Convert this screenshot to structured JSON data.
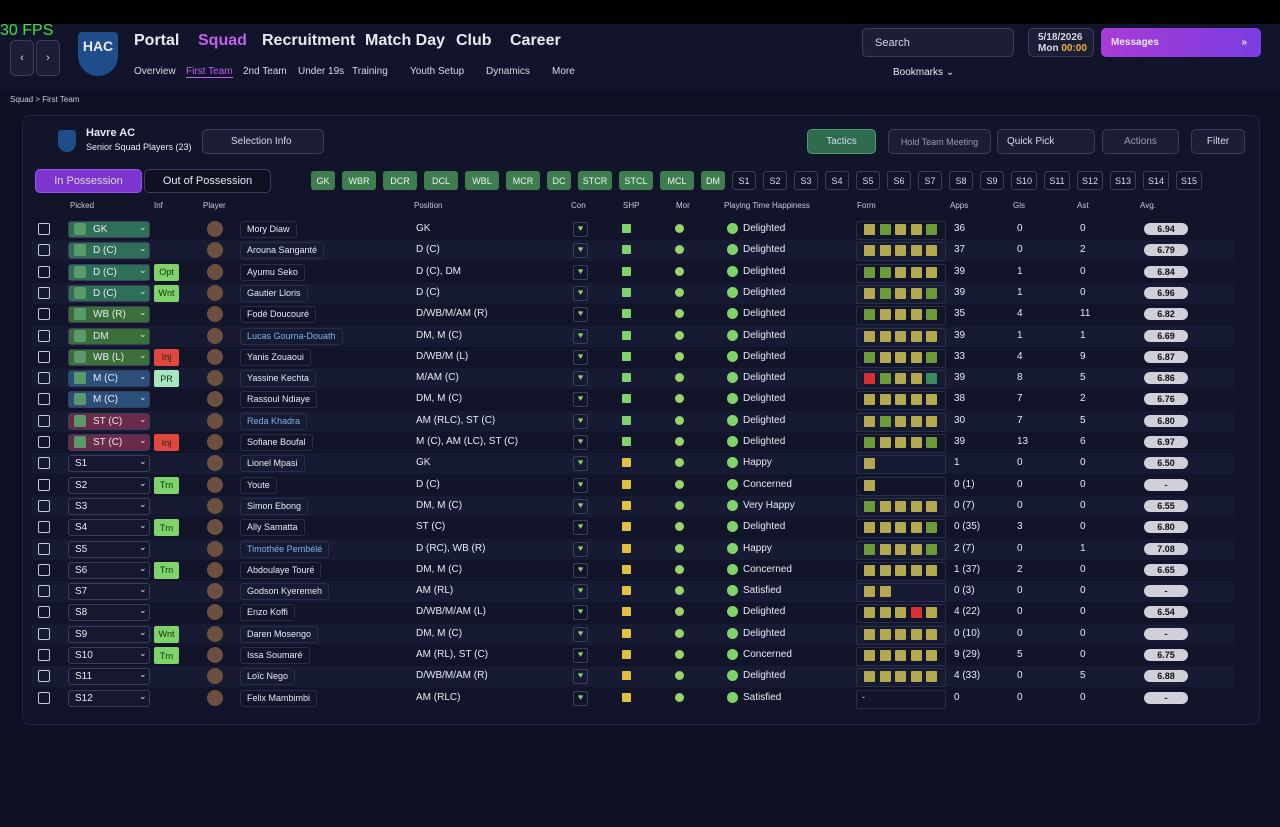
{
  "fps": "30 FPS",
  "nav": {
    "main": [
      "Portal",
      "Squad",
      "Recruitment",
      "Match Day",
      "Club",
      "Career"
    ],
    "sub": [
      "Overview",
      "First Team",
      "2nd Team",
      "Under 19s",
      "Training",
      "Youth Setup",
      "Dynamics",
      "More"
    ],
    "search": "Search",
    "date": "5/18/2026",
    "day": "Mon",
    "time": "00:00",
    "messages": "Messages",
    "bookmarks": "Bookmarks",
    "club_badge": "HAC"
  },
  "breadcrumb": [
    "Squad",
    "First Team"
  ],
  "team": {
    "name": "Havre AC",
    "subtitle": "Senior Squad Players (23)",
    "selection": "Selection Info"
  },
  "buttons": {
    "tactics": "Tactics",
    "meeting": "Hold Team Meeting",
    "quick_pick": "Quick Pick",
    "actions": "Actions",
    "filter": "Filter"
  },
  "tabs": [
    "In Possession",
    "Out of Possession"
  ],
  "starter_slots": [
    "GK",
    "WBR",
    "DCR",
    "DCL",
    "WBL",
    "MCR",
    "DC",
    "STCR",
    "STCL",
    "MCL",
    "DM"
  ],
  "sub_slots": [
    "S1",
    "S2",
    "S3",
    "S4",
    "S5",
    "S6",
    "S7",
    "S8",
    "S9",
    "S10",
    "S11",
    "S12",
    "S13",
    "S14",
    "S15"
  ],
  "table": {
    "headers": [
      "Picked",
      "Inf",
      "Player",
      "Position",
      "Con",
      "SHP",
      "Mor",
      "Playing Time Happiness",
      "Form",
      "Apps",
      "Gls",
      "Ast",
      "Avg."
    ],
    "rows": [
      {
        "picked": "GK",
        "pick_color": "#2f6f57",
        "name": "Mory Diaw",
        "position": "GK",
        "happiness": "Delighted",
        "apps": "36",
        "gls": 0,
        "ast": 0,
        "avg": "6.94",
        "form": [
          "#b5a94f",
          "#6f9a3a",
          "#b5a94f",
          "#b5a94f",
          "#6f9a3a"
        ]
      },
      {
        "picked": "D (C)",
        "pick_color": "#2f6f57",
        "name": "Arouna Sanganté",
        "position": "D (C)",
        "happiness": "Delighted",
        "apps": "37",
        "gls": 0,
        "ast": 2,
        "avg": "6.79",
        "form": [
          "#b5a94f",
          "#b5a94f",
          "#b5a94f",
          "#b5a94f",
          "#b5a94f"
        ]
      },
      {
        "picked": "D (C)",
        "pick_color": "#2f6f57",
        "inf": {
          "label": "Opt",
          "color": "#7fd36a"
        },
        "name": "Ayumu Seko",
        "position": "D (C), DM",
        "happiness": "Delighted",
        "apps": "39",
        "gls": 1,
        "ast": 0,
        "avg": "6.84",
        "form": [
          "#6f9a3a",
          "#6f9a3a",
          "#b5a94f",
          "#b5a94f",
          "#b5a94f"
        ]
      },
      {
        "picked": "D (C)",
        "pick_color": "#2f6f57",
        "inf": {
          "label": "Wnt",
          "color": "#7fd36a"
        },
        "name": "Gautier Lloris",
        "position": "D (C)",
        "happiness": "Delighted",
        "apps": "39",
        "gls": 1,
        "ast": 0,
        "avg": "6.96",
        "form": [
          "#b5a94f",
          "#6f9a3a",
          "#b5a94f",
          "#b5a94f",
          "#6f9a3a"
        ]
      },
      {
        "picked": "WB (R)",
        "pick_color": "#3a6f3a",
        "name": "Fodé Doucouré",
        "position": "D/WB/M/AM (R)",
        "happiness": "Delighted",
        "apps": "35",
        "gls": 4,
        "ast": 11,
        "avg": "6.82",
        "form": [
          "#6f9a3a",
          "#b5a94f",
          "#b5a94f",
          "#b5a94f",
          "#6f9a3a"
        ]
      },
      {
        "picked": "DM",
        "pick_color": "#3a6f3a",
        "name": "Lucas Gourna-Douath",
        "position": "DM, M (C)",
        "happiness": "Delighted",
        "apps": "39",
        "gls": 1,
        "ast": 1,
        "avg": "6.69",
        "form": [
          "#b5a94f",
          "#b5a94f",
          "#b5a94f",
          "#b5a94f",
          "#b5a94f"
        ]
      },
      {
        "picked": "WB (L)",
        "pick_color": "#3a6f3a",
        "inf": {
          "label": "Inj",
          "color": "#e0483f"
        },
        "name": "Yanis Zouaoui",
        "position": "D/WB/M (L)",
        "happiness": "Delighted",
        "apps": "33",
        "gls": 4,
        "ast": 9,
        "avg": "6.87",
        "form": [
          "#6f9a3a",
          "#b5a94f",
          "#b5a94f",
          "#b5a94f",
          "#6f9a3a"
        ]
      },
      {
        "picked": "M (C)",
        "pick_color": "#2a4f7a",
        "inf": {
          "label": "PR",
          "color": "#a8e6c0"
        },
        "name": "Yassine Kechta",
        "position": "M/AM (C)",
        "happiness": "Delighted",
        "apps": "39",
        "gls": 8,
        "ast": 5,
        "avg": "6.86",
        "form": [
          "#d83030",
          "#6f9a3a",
          "#b5a94f",
          "#b5a94f",
          "#3a8a5a"
        ]
      },
      {
        "picked": "M (C)",
        "pick_color": "#2a4f7a",
        "name": "Rassoul Ndiaye",
        "position": "DM, M (C)",
        "happiness": "Delighted",
        "apps": "38",
        "gls": 7,
        "ast": 2,
        "avg": "6.76",
        "form": [
          "#b5a94f",
          "#b5a94f",
          "#b5a94f",
          "#b5a94f",
          "#b5a94f"
        ]
      },
      {
        "picked": "ST (C)",
        "pick_color": "#6a2a4a",
        "name": "Reda Khadra",
        "position": "AM (RLC), ST (C)",
        "happiness": "Delighted",
        "apps": "30",
        "gls": 7,
        "ast": 5,
        "avg": "6.80",
        "form": [
          "#b5a94f",
          "#6f9a3a",
          "#b5a94f",
          "#b5a94f",
          "#b5a94f"
        ]
      },
      {
        "picked": "ST (C)",
        "pick_color": "#6a2a4a",
        "inf": {
          "label": "Inj",
          "color": "#e0483f"
        },
        "name": "Sofiane Boufal",
        "position": "M (C), AM (LC), ST (C)",
        "happiness": "Delighted",
        "apps": "39",
        "gls": 13,
        "ast": 6,
        "avg": "6.97",
        "form": [
          "#6f9a3a",
          "#b5a94f",
          "#b5a94f",
          "#b5a94f",
          "#6f9a3a"
        ]
      },
      {
        "picked": "S1",
        "name": "Lionel Mpasi",
        "position": "GK",
        "happiness": "Happy",
        "apps": "1",
        "gls": 0,
        "ast": 0,
        "avg": "6.50",
        "form": [
          "#b5a94f"
        ]
      },
      {
        "picked": "S2",
        "inf": {
          "label": "Trn",
          "color": "#7fd36a"
        },
        "name": "Youte",
        "position": "D (C)",
        "happiness": "Concerned",
        "apps": "0 (1)",
        "gls": 0,
        "ast": 0,
        "avg": "-",
        "form": [
          "#b5a94f"
        ]
      },
      {
        "picked": "S3",
        "name": "Simon Ebong",
        "position": "DM, M (C)",
        "happiness": "Very Happy",
        "apps": "0 (7)",
        "gls": 0,
        "ast": 0,
        "avg": "6.55",
        "form": [
          "#6f9a3a",
          "#b5a94f",
          "#b5a94f",
          "#b5a94f",
          "#b5a94f"
        ]
      },
      {
        "picked": "S4",
        "inf": {
          "label": "Trn",
          "color": "#7fd36a"
        },
        "name": "Ally Samatta",
        "position": "ST (C)",
        "happiness": "Delighted",
        "apps": "0 (35)",
        "gls": 3,
        "ast": 0,
        "avg": "6.80",
        "form": [
          "#b5a94f",
          "#b5a94f",
          "#b5a94f",
          "#b5a94f",
          "#6f9a3a"
        ]
      },
      {
        "picked": "S5",
        "name": "Timothée Pembélé",
        "position": "D (RC), WB (R)",
        "happiness": "Happy",
        "apps": "2 (7)",
        "gls": 0,
        "ast": 1,
        "avg": "7.08",
        "form": [
          "#6f9a3a",
          "#b5a94f",
          "#b5a94f",
          "#b5a94f",
          "#6f9a3a"
        ]
      },
      {
        "picked": "S6",
        "inf": {
          "label": "Trn",
          "color": "#7fd36a"
        },
        "name": "Abdoulaye Touré",
        "position": "DM, M (C)",
        "happiness": "Concerned",
        "apps": "1 (37)",
        "gls": 2,
        "ast": 0,
        "avg": "6.65",
        "form": [
          "#b5a94f",
          "#b5a94f",
          "#b5a94f",
          "#b5a94f",
          "#b5a94f"
        ]
      },
      {
        "picked": "S7",
        "name": "Godson Kyeremeh",
        "position": "AM (RL)",
        "happiness": "Satisfied",
        "apps": "0 (3)",
        "gls": 0,
        "ast": 0,
        "avg": "-",
        "form": [
          "#b5a94f",
          "#b5a94f"
        ]
      },
      {
        "picked": "S8",
        "name": "Enzo Koffi",
        "position": "D/WB/M/AM (L)",
        "happiness": "Delighted",
        "apps": "4 (22)",
        "gls": 0,
        "ast": 0,
        "avg": "6.54",
        "form": [
          "#b5a94f",
          "#b5a94f",
          "#b5a94f",
          "#d83030",
          "#b5a94f"
        ]
      },
      {
        "picked": "S9",
        "inf": {
          "label": "Wnt",
          "color": "#7fd36a"
        },
        "name": "Daren Mosengo",
        "position": "DM, M (C)",
        "happiness": "Delighted",
        "apps": "0 (10)",
        "gls": 0,
        "ast": 0,
        "avg": "-",
        "form": [
          "#b5a94f",
          "#b5a94f",
          "#b5a94f",
          "#b5a94f",
          "#b5a94f"
        ]
      },
      {
        "picked": "S10",
        "inf": {
          "label": "Trn",
          "color": "#7fd36a"
        },
        "name": "Issa Soumaré",
        "position": "AM (RL), ST (C)",
        "happiness": "Concerned",
        "apps": "9 (29)",
        "gls": 5,
        "ast": 0,
        "avg": "6.75",
        "form": [
          "#b5a94f",
          "#b5a94f",
          "#b5a94f",
          "#b5a94f",
          "#b5a94f"
        ]
      },
      {
        "picked": "S11",
        "name": "Loïc Nego",
        "position": "D/WB/M/AM (R)",
        "happiness": "Delighted",
        "apps": "4 (33)",
        "gls": 0,
        "ast": 5,
        "avg": "6.88",
        "form": [
          "#b5a94f",
          "#b5a94f",
          "#b5a94f",
          "#b5a94f",
          "#b5a94f"
        ]
      },
      {
        "picked": "S12",
        "name": "Felix Mambimbi",
        "position": "AM (RLC)",
        "happiness": "Satisfied",
        "apps": "0",
        "gls": 0,
        "ast": 0,
        "avg": "-",
        "form": "-"
      }
    ]
  }
}
